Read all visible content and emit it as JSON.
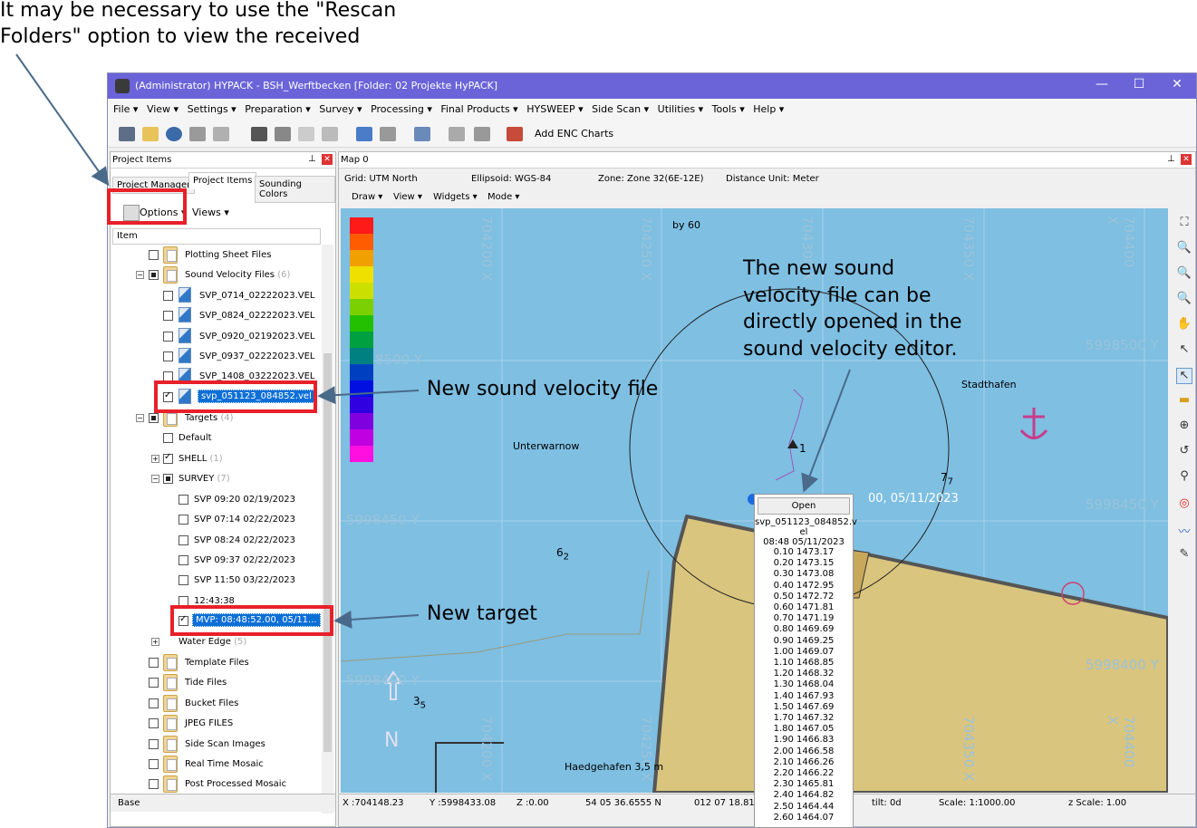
{
  "annotations": {
    "rescan_note_line1": "It may be necessary to use the \"Rescan",
    "rescan_note_line2": "Folders\" option to view the received",
    "sv_file_note": "New sound velocity file",
    "editor_note_line1": "The new sound",
    "editor_note_line2": "velocity file can be",
    "editor_note_line3": "directly opened in the",
    "editor_note_line4": "sound velocity editor.",
    "target_note": "New target"
  },
  "window": {
    "title": "(Administrator) HYPACK - BSH_Werftbecken  [Folder: 02 Projekte HyPACK]",
    "minimize": "—",
    "maximize": "☐",
    "close": "✕"
  },
  "menu": [
    "File ▾",
    "View ▾",
    "Settings ▾",
    "Preparation ▾",
    "Survey ▾",
    "Processing ▾",
    "Final Products ▾",
    "HYSWEEP ▾",
    "Side Scan ▾",
    "Utilities ▾",
    "Tools ▾",
    "Help ▾"
  ],
  "toolbar": {
    "add_enc": "Add ENC Charts"
  },
  "left_panel": {
    "title": "Project Items",
    "tabs": [
      "Project Manager",
      "Project Items",
      "Sounding Colors"
    ],
    "options": "Options ▾",
    "views": "Views ▾",
    "column": "Item",
    "base_tab": "Base",
    "tree": {
      "plotting": "Plotting Sheet Files",
      "sound_velocity": "Sound Velocity Files",
      "sound_velocity_count": "(6)",
      "svp1": "SVP_0714_02222023.VEL",
      "svp2": "SVP_0824_02222023.VEL",
      "svp3": "SVP_0920_02192023.VEL",
      "svp4": "SVP_0937_02222023.VEL",
      "svp5": "SVP_1408_03222023.VEL",
      "svp_new": "svp_051123_084852.vel",
      "targets": "Targets",
      "targets_count": "(4)",
      "default": "Default",
      "shell": "SHELL",
      "shell_count": "(1)",
      "survey": "SURVEY",
      "survey_count": "(7)",
      "t1": "SVP 09:20 02/19/2023",
      "t2": "SVP 07:14 02/22/2023",
      "t3": "SVP 08:24 02/22/2023",
      "t4": "SVP 09:37 02/22/2023",
      "t5": "SVP 11:50 03/22/2023",
      "t6": "12:43:38",
      "t_new": "MVP: 08:48:52.00, 05/11...",
      "water_edge": "Water Edge",
      "water_edge_count": "(5)",
      "template": "Template Files",
      "tide": "Tide Files",
      "bucket": "Bucket Files",
      "jpeg": "JPEG FILES",
      "sidescan": "Side Scan Images",
      "rtmosaic": "Real Time Mosaic",
      "ppmosaic": "Post Processed Mosaic"
    }
  },
  "map": {
    "title": "Map 0",
    "grid": "Grid: UTM North",
    "ellipsoid": "Ellipsoid: WGS-84",
    "zone": "Zone: Zone 32(6E-12E)",
    "unit": "Distance Unit: Meter",
    "menus": [
      "Draw ▾",
      "View ▾",
      "Widgets ▾",
      "Mode ▾"
    ],
    "grid_x": [
      "704200 X",
      "704250 X",
      "704300 X",
      "704350 X",
      "704400 X"
    ],
    "grid_y_right": [
      "5998500 Y",
      "5998450 Y",
      "5998400 Y"
    ],
    "grid_y_left": [
      "8500 Y",
      "5998450 Y",
      "5998400 Y"
    ],
    "place_unterwarnow": "Unterwarnow",
    "place_stadthafen": "Stadthafen",
    "place_haedgehafen": "Haedgehafen 3,5 m",
    "buoy": "by 60",
    "target_label": "1",
    "target_time": "00, 05/11/2023",
    "sound_62": "6",
    "sound_62_sub": "2",
    "sound_35": "3",
    "sound_35_sub": "5",
    "sound_77": "7",
    "sound_77_sub": "7",
    "north": "N",
    "status": {
      "x": "X :704148.23",
      "y": "Y :5998433.08",
      "z": "Z :0.00",
      "lat": "54 05 36.6555 N",
      "lon": "012 07 18.814",
      "tilt": "tilt:  0d",
      "scale": "Scale: 1:1000.00",
      "zscale": "z Scale: 1.00"
    }
  },
  "popup": {
    "open": "Open",
    "file": "svp_051123_084852.v",
    "file2": "el",
    "time": "08:48 05/11/2023",
    "values": [
      "0.10 1473.17",
      "0.20 1473.15",
      "0.30 1473.08",
      "0.40 1472.95",
      "0.50 1472.72",
      "0.60 1471.81",
      "0.70 1471.19",
      "0.80 1469.69",
      "0.90 1469.25",
      "1.00 1469.07",
      "1.10 1468.85",
      "1.20 1468.32",
      "1.30 1468.04",
      "1.40 1467.93",
      "1.50 1467.69",
      "1.70 1467.32",
      "1.80 1467.05",
      "1.90 1466.83",
      "2.00 1466.58",
      "2.10 1466.26",
      "2.20 1466.22",
      "2.30 1465.81",
      "2.40 1464.82",
      "2.50 1464.44",
      "2.60 1464.07"
    ]
  },
  "colors": {
    "titlebar": "#6b64d8",
    "water": "#7ebfe2",
    "land": "#d9c57e",
    "highlight": "#e8202a",
    "selection": "#0d6fd6"
  }
}
